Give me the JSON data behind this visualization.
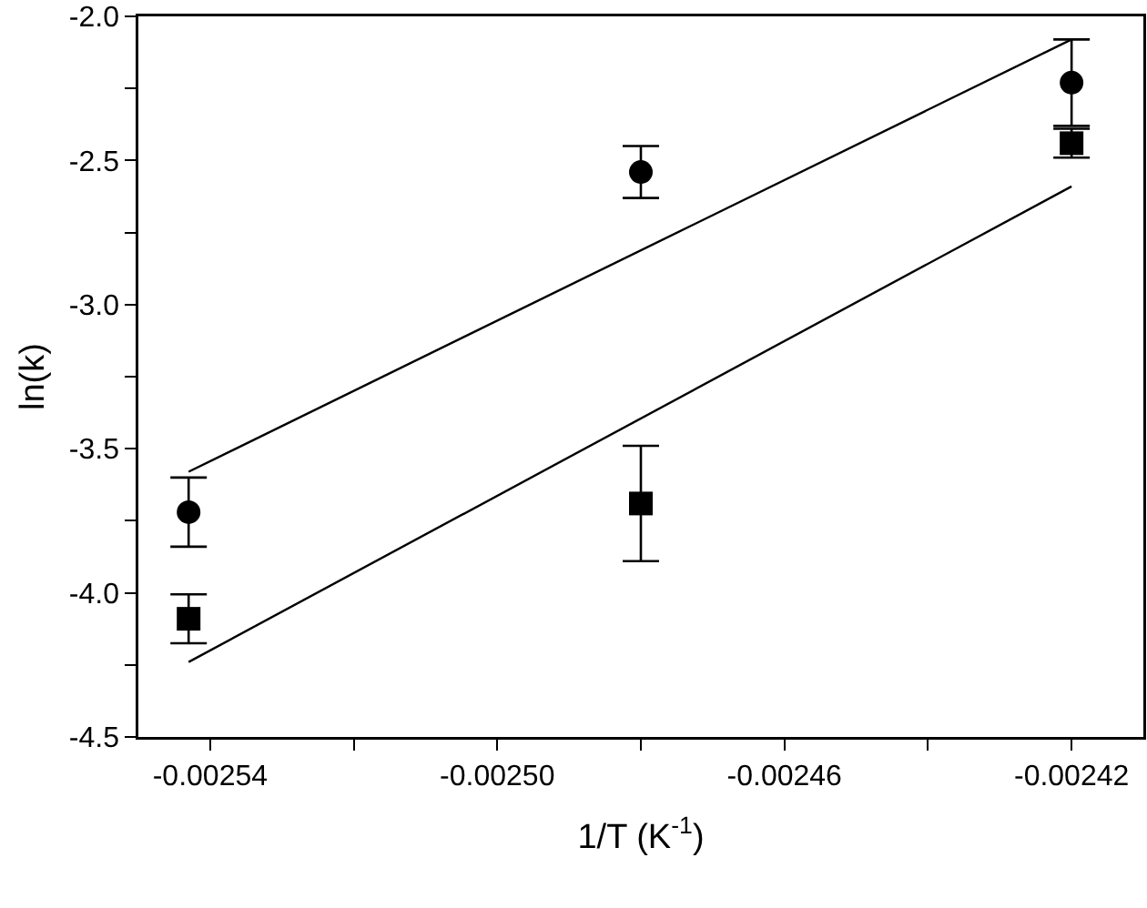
{
  "chart_data": {
    "type": "scatter",
    "xlabel": "1/T (K$^{-1}$)",
    "ylabel": "ln(k)",
    "xlim": [
      -0.00255,
      -0.00241
    ],
    "xticks": [
      -0.00254,
      {
        "value": -0.00252,
        "label": null
      },
      {
        "value": -0.0025,
        "label": "-0.00250"
      },
      {
        "value": -0.00248,
        "label": null
      },
      -0.00246,
      {
        "value": -0.00244,
        "label": null
      },
      -0.00242
    ],
    "ylim": [
      -4.5,
      -2.0
    ],
    "yticks": [
      {
        "value": -4.5,
        "label": "-4.5"
      },
      {
        "value": -4.25,
        "label": null
      },
      {
        "value": -4,
        "label": "-4.0"
      },
      {
        "value": -3.75,
        "label": null
      },
      {
        "value": -3.5,
        "label": "-3.5"
      },
      {
        "value": -3.25,
        "label": null
      },
      {
        "value": -3,
        "label": "-3.0"
      },
      {
        "value": -2.75,
        "label": null
      },
      {
        "value": -2.5,
        "label": "-2.5"
      },
      {
        "value": -2.25,
        "label": null
      },
      {
        "value": -2,
        "label": "-2.0"
      }
    ],
    "grid": false,
    "series": [
      {
        "type": "scatter",
        "marker": "circle",
        "color": "#000000",
        "x": [
          -0.002543,
          -0.00248,
          -0.00242
        ],
        "values": [
          -3.72,
          -2.54,
          -2.23
        ],
        "errors": [
          0.12,
          0.09,
          0.15
        ]
      },
      {
        "type": "scatter",
        "marker": "square",
        "color": "#000000",
        "x": [
          -0.002543,
          -0.00248,
          -0.00242
        ],
        "values": [
          -4.09,
          -3.69,
          -2.44
        ],
        "errors": [
          0.085,
          0.2,
          0.05
        ]
      },
      {
        "type": "line",
        "marker": "none",
        "line_style": "solid",
        "color": "#000000",
        "x": [
          -0.002543,
          -0.00242
        ],
        "values": [
          -3.58,
          -2.08
        ]
      },
      {
        "type": "line",
        "marker": "none",
        "line_style": "solid",
        "color": "#000000",
        "x": [
          -0.002543,
          -0.00242
        ],
        "values": [
          -4.24,
          -2.59
        ]
      }
    ]
  }
}
